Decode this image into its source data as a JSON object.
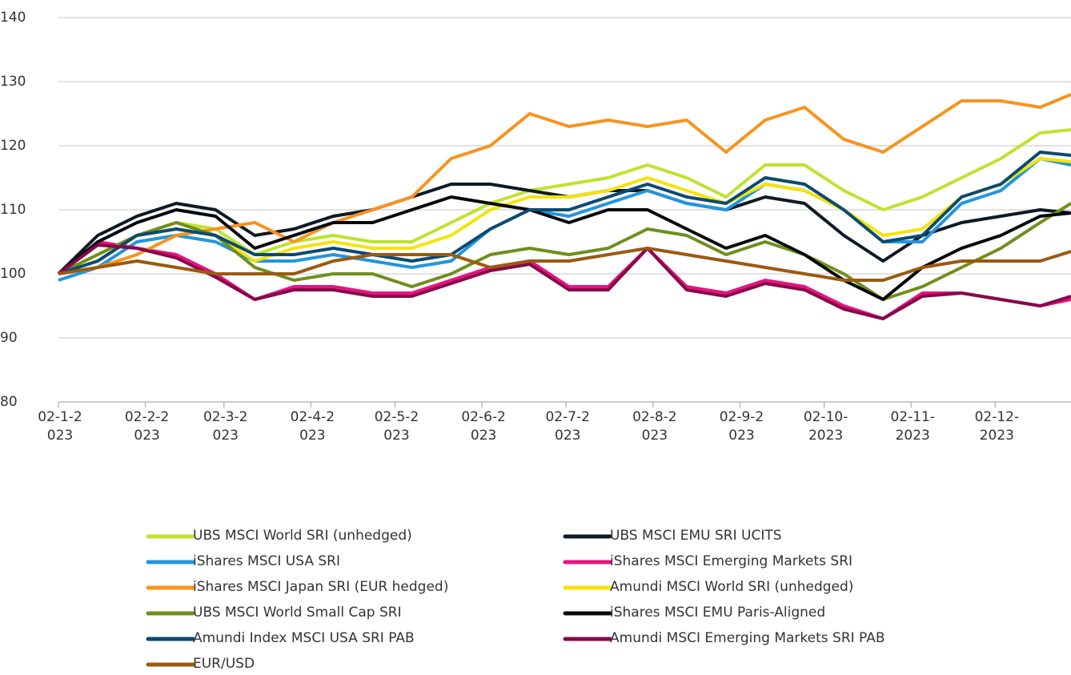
{
  "chart_data": {
    "type": "line",
    "x": [
      "2023-01-02",
      "2023-01-16",
      "2023-01-30",
      "2023-02-13",
      "2023-02-27",
      "2023-03-13",
      "2023-03-27",
      "2023-04-10",
      "2023-04-24",
      "2023-05-08",
      "2023-05-22",
      "2023-06-05",
      "2023-06-19",
      "2023-07-03",
      "2023-07-17",
      "2023-07-31",
      "2023-08-14",
      "2023-08-28",
      "2023-09-11",
      "2023-09-25",
      "2023-10-09",
      "2023-10-23",
      "2023-11-06",
      "2023-11-20",
      "2023-12-04",
      "2023-12-18",
      "2023-12-29"
    ],
    "xlim": [
      "2023-01-02",
      "2023-12-29"
    ],
    "xticks": [
      {
        "value": "2023-01-02",
        "label": "02-1-2023"
      },
      {
        "value": "2023-02-02",
        "label": "02-2-2023"
      },
      {
        "value": "2023-03-02",
        "label": "02-3-2023"
      },
      {
        "value": "2023-04-02",
        "label": "02-4-2023"
      },
      {
        "value": "2023-05-02",
        "label": "02-5-2023"
      },
      {
        "value": "2023-06-02",
        "label": "02-6-2023"
      },
      {
        "value": "2023-07-02",
        "label": "02-7-2023"
      },
      {
        "value": "2023-08-02",
        "label": "02-8-2023"
      },
      {
        "value": "2023-09-02",
        "label": "02-9-2023"
      },
      {
        "value": "2023-10-02",
        "label": "02-10-2023"
      },
      {
        "value": "2023-11-02",
        "label": "02-11-2023"
      },
      {
        "value": "2023-12-02",
        "label": "02-12-2023"
      }
    ],
    "ylim": [
      80,
      140
    ],
    "yticks": [
      80,
      90,
      100,
      110,
      120,
      130,
      140
    ],
    "grid": true,
    "legend": "bottom",
    "series": [
      {
        "name": "UBS MSCI World SRI (unhedged)",
        "color": "#bde42c",
        "values": [
          100,
          103,
          106,
          108,
          107,
          103,
          105,
          106,
          105,
          105,
          108,
          111,
          113,
          114,
          115,
          117,
          115,
          112,
          117,
          117,
          113,
          110,
          112,
          115,
          118,
          122,
          122.5
        ]
      },
      {
        "name": "UBS MSCI EMU SRI UCITS",
        "color": "#0e1a26",
        "values": [
          100,
          106,
          109,
          111,
          110,
          106,
          107,
          109,
          110,
          112,
          114,
          114,
          113,
          112,
          113,
          113,
          111,
          110,
          112,
          111,
          106,
          102,
          106,
          108,
          109,
          110,
          109.5
        ]
      },
      {
        "name": "iShares MSCI USA SRI",
        "color": "#2196dc",
        "values": [
          99,
          101,
          105,
          106,
          105,
          102,
          102,
          103,
          102,
          101,
          102,
          107,
          110,
          109,
          111,
          113,
          111,
          110,
          114,
          113,
          110,
          105,
          105,
          111,
          113,
          118,
          117
        ]
      },
      {
        "name": "iShares MSCI Emerging Markets SRI",
        "color": "#e8127f",
        "values": [
          100,
          105,
          104,
          103,
          100,
          96,
          98,
          98,
          97,
          97,
          99,
          101,
          102,
          98,
          98,
          104,
          98,
          97,
          99,
          98,
          95,
          93,
          97,
          97,
          96,
          95,
          96
        ]
      },
      {
        "name": "iShares MSCI Japan SRI (EUR hedged)",
        "color": "#f7931e",
        "values": [
          100,
          101,
          103,
          106,
          107,
          108,
          105,
          108,
          110,
          112,
          118,
          120,
          125,
          123,
          124,
          123,
          124,
          119,
          124,
          126,
          121,
          119,
          123,
          127,
          127,
          126,
          128
        ]
      },
      {
        "name": "Amundi MSCI World SRI (unhedged)",
        "color": "#f5e30a",
        "values": [
          100,
          102,
          106,
          107,
          106,
          102,
          104,
          105,
          104,
          104,
          106,
          110,
          112,
          112,
          113,
          115,
          113,
          111,
          114,
          113,
          110,
          106,
          107,
          112,
          114,
          118,
          117.5
        ]
      },
      {
        "name": "UBS MSCI World Small Cap SRI",
        "color": "#6f8f1c",
        "values": [
          100,
          103,
          106,
          108,
          106,
          101,
          99,
          100,
          100,
          98,
          100,
          103,
          104,
          103,
          104,
          107,
          106,
          103,
          105,
          103,
          100,
          96,
          98,
          101,
          104,
          108,
          111
        ]
      },
      {
        "name": "iShares MSCI EMU Paris-Aligned",
        "color": "#05080c",
        "values": [
          100,
          105,
          108,
          110,
          109,
          104,
          106,
          108,
          108,
          110,
          112,
          111,
          110,
          108,
          110,
          110,
          107,
          104,
          106,
          103,
          99,
          96,
          101,
          104,
          106,
          109,
          109.5
        ]
      },
      {
        "name": "Amundi Index MSCI USA SRI PAB",
        "color": "#0b4a70",
        "values": [
          100,
          102,
          106,
          107,
          106,
          103,
          103,
          104,
          103,
          102,
          103,
          107,
          110,
          110,
          112,
          114,
          112,
          111,
          115,
          114,
          110,
          105,
          106,
          112,
          114,
          119,
          118.5
        ]
      },
      {
        "name": "Amundi MSCI Emerging Markets SRI PAB",
        "color": "#86094b",
        "values": [
          100,
          104.5,
          104,
          102.5,
          99.5,
          96,
          97.5,
          97.5,
          96.5,
          96.5,
          98.5,
          100.5,
          101.5,
          97.5,
          97.5,
          104,
          97.5,
          96.5,
          98.5,
          97.5,
          94.5,
          93,
          96.5,
          97,
          96,
          95,
          96.5
        ]
      },
      {
        "name": "EUR/USD",
        "color": "#9a5a10",
        "values": [
          100,
          101,
          102,
          101,
          100,
          100,
          100,
          102,
          103,
          103,
          103,
          101,
          102,
          102,
          103,
          104,
          103,
          102,
          101,
          100,
          99,
          99,
          101,
          102,
          102,
          102,
          103.5
        ]
      }
    ]
  }
}
